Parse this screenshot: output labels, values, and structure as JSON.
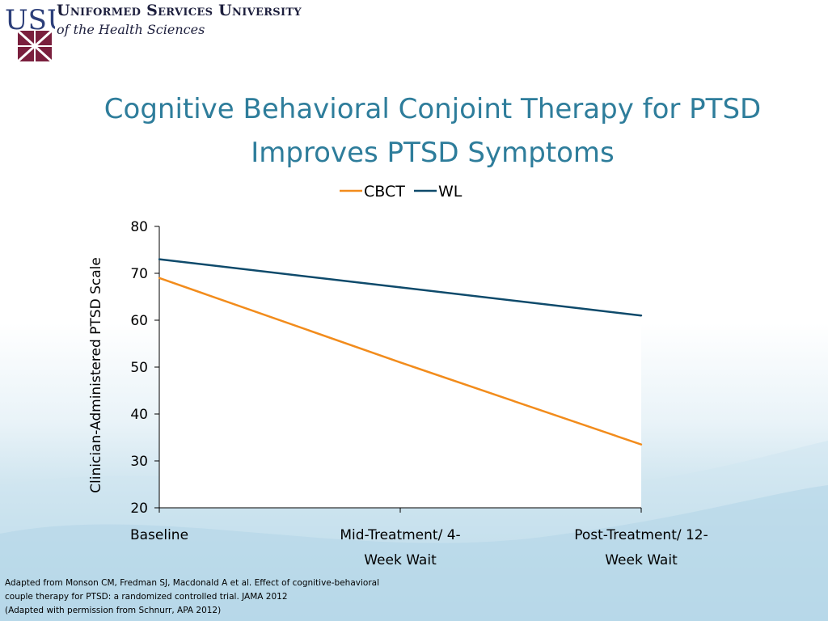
{
  "header": {
    "university_name": "Uniformed Services University",
    "university_sub": "of the Health Sciences",
    "logo_letters": "USU"
  },
  "slide": {
    "title_line1": "Cognitive Behavioral Conjoint Therapy for PTSD",
    "title_line2": "Improves PTSD Symptoms"
  },
  "colors": {
    "title": "#2e7d9b",
    "cbct": "#f28c1c",
    "wl": "#0e4a6b",
    "logo_maroon": "#7a1f3d",
    "logo_blue": "#2d3f7a"
  },
  "chart_data": {
    "type": "line",
    "categories": [
      "Baseline",
      "Mid-Treatment/ 4-Week Wait",
      "Post-Treatment/ 12-Week Wait"
    ],
    "category_lines": [
      [
        "Baseline"
      ],
      [
        "Mid-Treatment/ 4-",
        "Week Wait"
      ],
      [
        "Post-Treatment/ 12-",
        "Week Wait"
      ]
    ],
    "series": [
      {
        "name": "CBCT",
        "values": [
          69,
          51,
          33.5
        ],
        "color": "#f28c1c"
      },
      {
        "name": "WL",
        "values": [
          73,
          67,
          61
        ],
        "color": "#0e4a6b"
      }
    ],
    "ylabel": "Clinician-Administered PTSD Scale",
    "xlabel": "",
    "ylim": [
      20,
      80
    ],
    "yticks": [
      20,
      30,
      40,
      50,
      60,
      70,
      80
    ],
    "legend": "top",
    "grid": false
  },
  "footnote": {
    "line1": "Adapted from Monson CM, Fredman SJ, Macdonald A et al. Effect of cognitive-behavioral",
    "line2": "couple therapy for PTSD: a randomized controlled trial. JAMA 2012",
    "line3": "(Adapted with permission from Schnurr, APA 2012)"
  }
}
